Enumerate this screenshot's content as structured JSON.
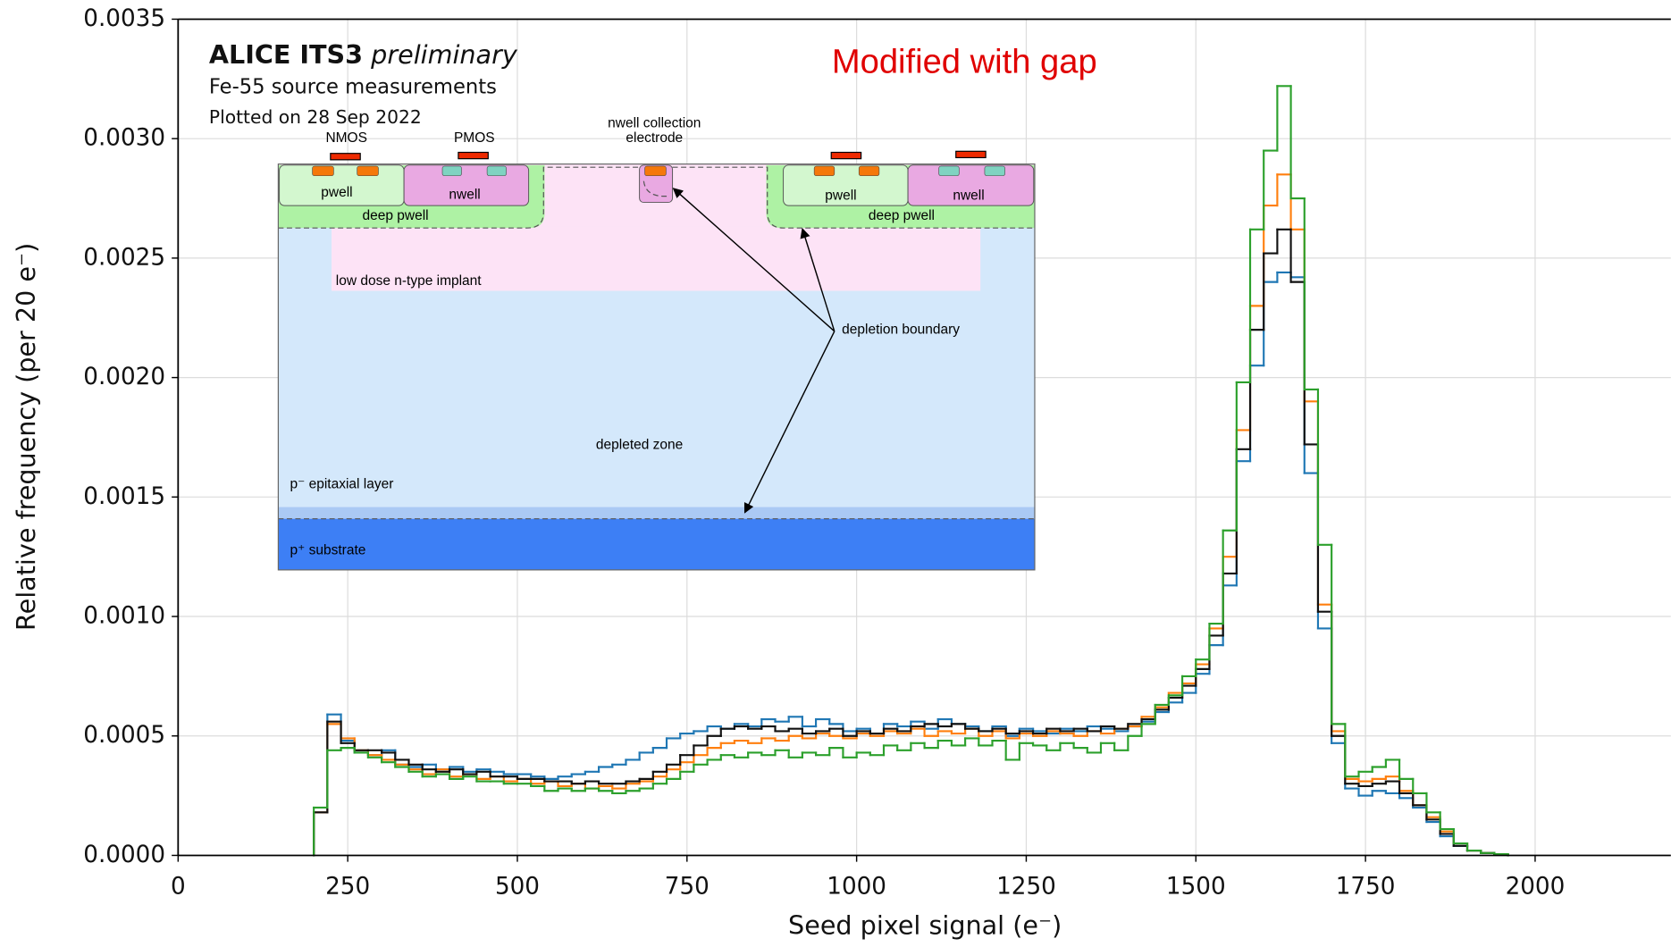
{
  "chart_data": {
    "type": "histogram",
    "title": "ALICE ITS3",
    "title_suffix": "preliminary",
    "subtitle": "Fe-55 source measurements",
    "date_note": "Plotted on 28 Sep 2022",
    "annotation": "Modified with gap",
    "x_label": "Seed pixel signal (e⁻)",
    "y_label": "Relative frequency (per 20 e⁻)",
    "xlim": [
      0,
      2200
    ],
    "xticks": [
      0,
      250,
      500,
      750,
      1000,
      1250,
      1500,
      1750,
      2000
    ],
    "ylim": [
      0,
      0.0035
    ],
    "yticks": [
      {
        "value": 0,
        "label": "0.0000"
      },
      0.0005,
      {
        "value": 0.001,
        "label": "0.0010"
      },
      0.0015,
      {
        "value": 0.002,
        "label": "0.0020"
      },
      0.0025,
      {
        "value": 0.003,
        "label": "0.0030"
      },
      0.0035
    ],
    "grid": true,
    "bins": [
      200,
      220,
      240,
      260,
      280,
      300,
      320,
      340,
      360,
      380,
      400,
      420,
      440,
      460,
      480,
      500,
      520,
      540,
      560,
      580,
      600,
      620,
      640,
      660,
      680,
      700,
      720,
      740,
      760,
      780,
      800,
      820,
      840,
      860,
      880,
      900,
      920,
      940,
      960,
      980,
      1000,
      1020,
      1040,
      1060,
      1080,
      1100,
      1120,
      1140,
      1160,
      1180,
      1200,
      1220,
      1240,
      1260,
      1280,
      1300,
      1320,
      1340,
      1360,
      1380,
      1400,
      1420,
      1440,
      1460,
      1480,
      1500,
      1520,
      1540,
      1560,
      1580,
      1600,
      1620,
      1640,
      1660,
      1680,
      1700,
      1720,
      1740,
      1760,
      1780,
      1800,
      1820,
      1840,
      1860,
      1880,
      1900,
      1920,
      1940,
      1960
    ],
    "series": [
      {
        "color": "#1f77b4",
        "values": [
          0.00018,
          0.00059,
          0.00048,
          0.00043,
          0.00042,
          0.00044,
          0.00038,
          0.00037,
          0.00038,
          0.00036,
          0.00037,
          0.00035,
          0.00036,
          0.00035,
          0.00034,
          0.00034,
          0.00033,
          0.00032,
          0.00033,
          0.00034,
          0.00035,
          0.00037,
          0.00038,
          0.0004,
          0.00043,
          0.00045,
          0.00049,
          0.00051,
          0.00052,
          0.00054,
          0.00053,
          0.00055,
          0.00054,
          0.00057,
          0.00056,
          0.00058,
          0.00054,
          0.00057,
          0.00055,
          0.00052,
          0.00053,
          0.00051,
          0.00055,
          0.00054,
          0.00056,
          0.00053,
          0.00057,
          0.00055,
          0.00054,
          0.00052,
          0.00054,
          0.0005,
          0.00053,
          0.00052,
          0.00051,
          0.00053,
          0.00052,
          0.00054,
          0.00053,
          0.00052,
          0.00054,
          0.00056,
          0.0006,
          0.00064,
          0.00068,
          0.00076,
          0.00088,
          0.00113,
          0.00165,
          0.00205,
          0.0024,
          0.00244,
          0.00242,
          0.0016,
          0.00095,
          0.00047,
          0.00028,
          0.00025,
          0.00027,
          0.00026,
          0.00024,
          0.0002,
          0.00014,
          8e-05,
          4e-05,
          2e-05,
          1e-05,
          2e-06
        ]
      },
      {
        "color": "#ff7f0e",
        "values": [
          0.00018,
          0.00055,
          0.00049,
          0.00044,
          0.00042,
          0.0004,
          0.00038,
          0.00036,
          0.00034,
          0.00036,
          0.00033,
          0.00034,
          0.00032,
          0.00033,
          0.00031,
          0.00032,
          0.0003,
          0.00031,
          0.00029,
          0.0003,
          0.00028,
          0.00029,
          0.00028,
          0.0003,
          0.00031,
          0.00033,
          0.00036,
          0.00039,
          0.00042,
          0.00045,
          0.00047,
          0.00048,
          0.00047,
          0.00049,
          0.00048,
          0.0005,
          0.00049,
          0.00051,
          0.0005,
          0.00049,
          0.00051,
          0.0005,
          0.00052,
          0.00051,
          0.00053,
          0.0005,
          0.00052,
          0.00051,
          0.00053,
          0.0005,
          0.00052,
          0.00049,
          0.00051,
          0.0005,
          0.00052,
          0.00051,
          0.0005,
          0.00052,
          0.00051,
          0.00053,
          0.00054,
          0.00058,
          0.00062,
          0.00068,
          0.00072,
          0.0008,
          0.00095,
          0.00125,
          0.00178,
          0.0023,
          0.00272,
          0.00285,
          0.00262,
          0.0019,
          0.00105,
          0.00052,
          0.00032,
          0.00031,
          0.00032,
          0.00033,
          0.00027,
          0.00021,
          0.00016,
          0.0001,
          5e-05,
          2e-05,
          1e-05,
          3e-06
        ]
      },
      {
        "color": "#111111",
        "values": [
          0.00018,
          0.00056,
          0.00047,
          0.00044,
          0.00044,
          0.00043,
          0.0004,
          0.00038,
          0.00036,
          0.00035,
          0.00036,
          0.00034,
          0.00035,
          0.00033,
          0.00033,
          0.00032,
          0.00032,
          0.00031,
          0.00031,
          0.0003,
          0.00031,
          0.0003,
          0.0003,
          0.00031,
          0.00032,
          0.00035,
          0.00038,
          0.00042,
          0.00046,
          0.0005,
          0.00053,
          0.00054,
          0.00053,
          0.00054,
          0.00052,
          0.00053,
          0.00051,
          0.00052,
          0.00053,
          0.0005,
          0.00052,
          0.00051,
          0.00053,
          0.00052,
          0.00054,
          0.00055,
          0.00054,
          0.00055,
          0.00053,
          0.00052,
          0.00053,
          0.00051,
          0.00052,
          0.00051,
          0.00053,
          0.00052,
          0.00053,
          0.00052,
          0.00054,
          0.00053,
          0.00055,
          0.00057,
          0.00061,
          0.00066,
          0.00071,
          0.00078,
          0.00092,
          0.00118,
          0.0017,
          0.0022,
          0.00252,
          0.00262,
          0.0024,
          0.00172,
          0.00102,
          0.0005,
          0.0003,
          0.00029,
          0.0003,
          0.00031,
          0.00026,
          0.00021,
          0.00015,
          9e-05,
          4e-05,
          2e-05,
          1e-05,
          3e-06
        ]
      },
      {
        "color": "#2ca02c",
        "values": [
          0.0002,
          0.00044,
          0.00045,
          0.00043,
          0.00041,
          0.00039,
          0.00037,
          0.00035,
          0.00033,
          0.00034,
          0.00032,
          0.00033,
          0.00031,
          0.00031,
          0.0003,
          0.0003,
          0.00029,
          0.00027,
          0.00028,
          0.00027,
          0.00028,
          0.00027,
          0.00026,
          0.00027,
          0.00028,
          0.0003,
          0.00032,
          0.00035,
          0.00038,
          0.0004,
          0.00042,
          0.00041,
          0.00043,
          0.00042,
          0.00044,
          0.00041,
          0.00043,
          0.00042,
          0.00045,
          0.00041,
          0.00043,
          0.00042,
          0.00046,
          0.00044,
          0.00047,
          0.00045,
          0.00048,
          0.00046,
          0.00049,
          0.00046,
          0.00048,
          0.0004,
          0.00047,
          0.00046,
          0.00044,
          0.00047,
          0.00045,
          0.00043,
          0.00047,
          0.00044,
          0.0005,
          0.00055,
          0.00063,
          0.00067,
          0.00075,
          0.00082,
          0.00097,
          0.00136,
          0.00198,
          0.00262,
          0.00295,
          0.00322,
          0.00275,
          0.00195,
          0.0013,
          0.00055,
          0.00033,
          0.00035,
          0.00037,
          0.0004,
          0.00032,
          0.00026,
          0.00018,
          0.00011,
          5e-05,
          2e-05,
          1e-05,
          5e-06
        ]
      }
    ]
  },
  "inset": {
    "nmos": "NMOS",
    "pmos": "PMOS",
    "electrode_1": "nwell collection",
    "electrode_2": "electrode",
    "pwell_left": "pwell",
    "nwell_left": "nwell",
    "deep_pwell_left": "deep pwell",
    "pwell_right": "pwell",
    "nwell_right": "nwell",
    "deep_pwell_right": "deep pwell",
    "implant": "low dose n-type implant",
    "depletion_boundary": "depletion boundary",
    "depleted_zone": "depleted zone",
    "epitaxial": "p⁻ epitaxial layer",
    "substrate": "p⁺ substrate"
  }
}
